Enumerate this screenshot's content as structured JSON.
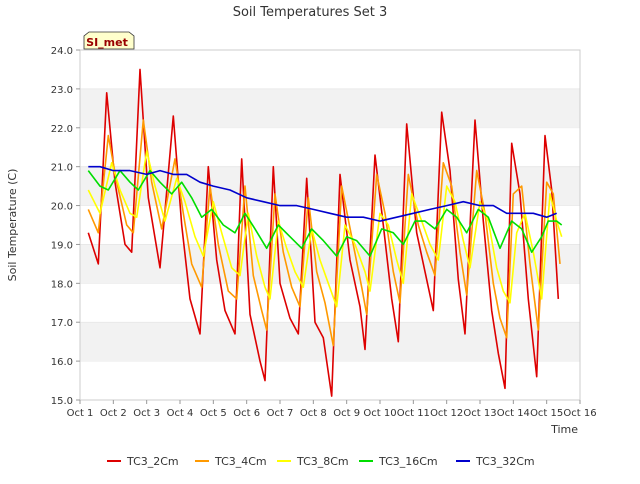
{
  "chart_data": {
    "type": "line",
    "title": "Soil Temperatures Set 3",
    "xlabel": "Time",
    "ylabel": "Soil Temperature (C)",
    "badge": "SI_met",
    "ylim": [
      15.0,
      24.0
    ],
    "xlim": [
      1,
      16
    ],
    "x_ticks": [
      {
        "v": 1,
        "label": "Oct 1"
      },
      {
        "v": 2,
        "label": "Oct 2"
      },
      {
        "v": 3,
        "label": "Oct 3"
      },
      {
        "v": 4,
        "label": "Oct 4"
      },
      {
        "v": 5,
        "label": "Oct 5"
      },
      {
        "v": 6,
        "label": "Oct 6"
      },
      {
        "v": 7,
        "label": "Oct 7"
      },
      {
        "v": 8,
        "label": "Oct 8"
      },
      {
        "v": 9,
        "label": "Oct 9"
      },
      {
        "v": 10,
        "label": "Oct 10"
      },
      {
        "v": 11,
        "label": "Oct 11"
      },
      {
        "v": 12,
        "label": "Oct 12"
      },
      {
        "v": 13,
        "label": "Oct 13"
      },
      {
        "v": 14,
        "label": "Oct 14"
      },
      {
        "v": 15,
        "label": "Oct 15"
      },
      {
        "v": 16,
        "label": "Oct 16"
      }
    ],
    "y_ticks": [
      "15.0",
      "16.0",
      "17.0",
      "18.0",
      "19.0",
      "20.0",
      "21.0",
      "22.0",
      "23.0",
      "24.0"
    ],
    "grid": "horizontal alternating bands",
    "legend_position": "bottom",
    "series": [
      {
        "name": "TC3_2Cm",
        "color": "#dd0000",
        "points": [
          [
            1.25,
            19.3
          ],
          [
            1.55,
            18.5
          ],
          [
            1.8,
            22.9
          ],
          [
            2.05,
            20.6
          ],
          [
            2.35,
            19.0
          ],
          [
            2.55,
            18.8
          ],
          [
            2.8,
            23.5
          ],
          [
            3.05,
            20.2
          ],
          [
            3.4,
            18.4
          ],
          [
            3.8,
            22.3
          ],
          [
            4.05,
            19.5
          ],
          [
            4.3,
            17.6
          ],
          [
            4.6,
            16.7
          ],
          [
            4.85,
            21.0
          ],
          [
            5.1,
            18.6
          ],
          [
            5.35,
            17.3
          ],
          [
            5.65,
            16.7
          ],
          [
            5.85,
            21.2
          ],
          [
            6.1,
            17.2
          ],
          [
            6.4,
            16.0
          ],
          [
            6.55,
            15.5
          ],
          [
            6.8,
            21.0
          ],
          [
            7.0,
            18.0
          ],
          [
            7.3,
            17.1
          ],
          [
            7.55,
            16.7
          ],
          [
            7.8,
            20.7
          ],
          [
            8.05,
            17.0
          ],
          [
            8.3,
            16.6
          ],
          [
            8.55,
            15.1
          ],
          [
            8.8,
            20.8
          ],
          [
            9.1,
            18.6
          ],
          [
            9.4,
            17.4
          ],
          [
            9.55,
            16.3
          ],
          [
            9.85,
            21.3
          ],
          [
            10.1,
            19.5
          ],
          [
            10.35,
            17.6
          ],
          [
            10.55,
            16.5
          ],
          [
            10.8,
            22.1
          ],
          [
            11.1,
            19.3
          ],
          [
            11.35,
            18.3
          ],
          [
            11.6,
            17.3
          ],
          [
            11.85,
            22.4
          ],
          [
            12.1,
            20.9
          ],
          [
            12.35,
            18.1
          ],
          [
            12.55,
            16.7
          ],
          [
            12.85,
            22.2
          ],
          [
            13.1,
            19.6
          ],
          [
            13.35,
            17.3
          ],
          [
            13.55,
            16.2
          ],
          [
            13.75,
            15.3
          ],
          [
            13.95,
            21.6
          ],
          [
            14.2,
            20.3
          ],
          [
            14.45,
            17.6
          ],
          [
            14.7,
            15.6
          ],
          [
            14.95,
            21.8
          ],
          [
            15.15,
            20.4
          ],
          [
            15.35,
            17.6
          ]
        ]
      },
      {
        "name": "TC3_4Cm",
        "color": "#ff9900",
        "points": [
          [
            1.25,
            19.9
          ],
          [
            1.55,
            19.3
          ],
          [
            1.85,
            21.8
          ],
          [
            2.1,
            20.6
          ],
          [
            2.4,
            19.5
          ],
          [
            2.6,
            19.3
          ],
          [
            2.9,
            22.2
          ],
          [
            3.15,
            20.6
          ],
          [
            3.45,
            19.4
          ],
          [
            3.85,
            21.2
          ],
          [
            4.1,
            19.8
          ],
          [
            4.35,
            18.5
          ],
          [
            4.65,
            17.9
          ],
          [
            4.9,
            20.5
          ],
          [
            5.15,
            19.0
          ],
          [
            5.45,
            17.8
          ],
          [
            5.7,
            17.6
          ],
          [
            5.95,
            20.5
          ],
          [
            6.2,
            18.2
          ],
          [
            6.45,
            17.3
          ],
          [
            6.6,
            16.8
          ],
          [
            6.85,
            20.3
          ],
          [
            7.1,
            18.8
          ],
          [
            7.35,
            17.9
          ],
          [
            7.6,
            17.4
          ],
          [
            7.85,
            20.2
          ],
          [
            8.1,
            18.3
          ],
          [
            8.35,
            17.5
          ],
          [
            8.6,
            16.4
          ],
          [
            8.85,
            20.5
          ],
          [
            9.15,
            19.2
          ],
          [
            9.45,
            17.9
          ],
          [
            9.6,
            17.2
          ],
          [
            9.9,
            20.8
          ],
          [
            10.15,
            19.8
          ],
          [
            10.4,
            18.3
          ],
          [
            10.6,
            17.5
          ],
          [
            10.85,
            20.8
          ],
          [
            11.15,
            19.5
          ],
          [
            11.4,
            18.8
          ],
          [
            11.65,
            18.2
          ],
          [
            11.9,
            21.1
          ],
          [
            12.15,
            20.5
          ],
          [
            12.4,
            18.8
          ],
          [
            12.6,
            17.7
          ],
          [
            12.9,
            20.9
          ],
          [
            13.15,
            19.8
          ],
          [
            13.4,
            18.0
          ],
          [
            13.6,
            17.1
          ],
          [
            13.8,
            16.6
          ],
          [
            14.0,
            20.3
          ],
          [
            14.25,
            20.5
          ],
          [
            14.5,
            18.5
          ],
          [
            14.75,
            16.8
          ],
          [
            15.0,
            20.6
          ],
          [
            15.2,
            20.3
          ],
          [
            15.4,
            18.5
          ]
        ]
      },
      {
        "name": "TC3_8Cm",
        "color": "#ffff00",
        "points": [
          [
            1.25,
            20.4
          ],
          [
            1.6,
            19.8
          ],
          [
            1.95,
            21.1
          ],
          [
            2.2,
            20.4
          ],
          [
            2.5,
            19.8
          ],
          [
            2.7,
            19.7
          ],
          [
            3.0,
            21.4
          ],
          [
            3.25,
            20.5
          ],
          [
            3.55,
            19.6
          ],
          [
            3.9,
            20.7
          ],
          [
            4.15,
            20.1
          ],
          [
            4.45,
            19.2
          ],
          [
            4.7,
            18.7
          ],
          [
            5.0,
            20.1
          ],
          [
            5.25,
            19.3
          ],
          [
            5.55,
            18.4
          ],
          [
            5.8,
            18.2
          ],
          [
            6.05,
            19.8
          ],
          [
            6.3,
            18.7
          ],
          [
            6.55,
            17.9
          ],
          [
            6.7,
            17.6
          ],
          [
            6.95,
            19.6
          ],
          [
            7.2,
            18.9
          ],
          [
            7.45,
            18.3
          ],
          [
            7.7,
            17.9
          ],
          [
            7.95,
            19.4
          ],
          [
            8.2,
            18.6
          ],
          [
            8.45,
            18.0
          ],
          [
            8.7,
            17.4
          ],
          [
            8.95,
            19.5
          ],
          [
            9.25,
            19.0
          ],
          [
            9.55,
            18.3
          ],
          [
            9.7,
            17.8
          ],
          [
            10.0,
            19.8
          ],
          [
            10.25,
            19.5
          ],
          [
            10.5,
            18.6
          ],
          [
            10.7,
            18.0
          ],
          [
            10.95,
            20.3
          ],
          [
            11.25,
            19.6
          ],
          [
            11.5,
            19.0
          ],
          [
            11.75,
            18.6
          ],
          [
            12.0,
            20.5
          ],
          [
            12.25,
            20.1
          ],
          [
            12.5,
            19.1
          ],
          [
            12.7,
            18.4
          ],
          [
            13.0,
            20.1
          ],
          [
            13.25,
            19.6
          ],
          [
            13.5,
            18.4
          ],
          [
            13.7,
            17.8
          ],
          [
            13.9,
            17.5
          ],
          [
            14.1,
            19.3
          ],
          [
            14.35,
            19.8
          ],
          [
            14.6,
            18.8
          ],
          [
            14.85,
            17.6
          ],
          [
            15.1,
            20.3
          ],
          [
            15.3,
            19.6
          ],
          [
            15.45,
            19.2
          ]
        ]
      },
      {
        "name": "TC3_16Cm",
        "color": "#00dd00",
        "points": [
          [
            1.25,
            20.9
          ],
          [
            1.6,
            20.5
          ],
          [
            1.85,
            20.4
          ],
          [
            2.2,
            20.9
          ],
          [
            2.5,
            20.6
          ],
          [
            2.75,
            20.4
          ],
          [
            3.1,
            20.9
          ],
          [
            3.4,
            20.6
          ],
          [
            3.75,
            20.3
          ],
          [
            4.05,
            20.6
          ],
          [
            4.35,
            20.2
          ],
          [
            4.65,
            19.7
          ],
          [
            4.95,
            19.9
          ],
          [
            5.3,
            19.5
          ],
          [
            5.65,
            19.3
          ],
          [
            5.95,
            19.8
          ],
          [
            6.25,
            19.4
          ],
          [
            6.6,
            18.9
          ],
          [
            6.95,
            19.5
          ],
          [
            7.3,
            19.2
          ],
          [
            7.65,
            18.9
          ],
          [
            7.95,
            19.4
          ],
          [
            8.3,
            19.1
          ],
          [
            8.7,
            18.7
          ],
          [
            9.0,
            19.2
          ],
          [
            9.3,
            19.1
          ],
          [
            9.7,
            18.7
          ],
          [
            10.05,
            19.4
          ],
          [
            10.4,
            19.3
          ],
          [
            10.7,
            19.0
          ],
          [
            11.05,
            19.6
          ],
          [
            11.35,
            19.6
          ],
          [
            11.65,
            19.4
          ],
          [
            12.0,
            19.9
          ],
          [
            12.3,
            19.7
          ],
          [
            12.6,
            19.3
          ],
          [
            12.95,
            19.9
          ],
          [
            13.25,
            19.7
          ],
          [
            13.6,
            18.9
          ],
          [
            13.95,
            19.6
          ],
          [
            14.25,
            19.4
          ],
          [
            14.55,
            18.8
          ],
          [
            14.85,
            19.2
          ],
          [
            15.05,
            19.6
          ],
          [
            15.3,
            19.6
          ],
          [
            15.45,
            19.5
          ]
        ]
      },
      {
        "name": "TC3_32Cm",
        "color": "#0000cc",
        "points": [
          [
            1.25,
            21.0
          ],
          [
            1.6,
            21.0
          ],
          [
            2.0,
            20.9
          ],
          [
            2.5,
            20.9
          ],
          [
            3.0,
            20.8
          ],
          [
            3.4,
            20.9
          ],
          [
            3.8,
            20.8
          ],
          [
            4.2,
            20.8
          ],
          [
            4.6,
            20.6
          ],
          [
            5.0,
            20.5
          ],
          [
            5.5,
            20.4
          ],
          [
            6.0,
            20.2
          ],
          [
            6.5,
            20.1
          ],
          [
            7.0,
            20.0
          ],
          [
            7.5,
            20.0
          ],
          [
            8.0,
            19.9
          ],
          [
            8.5,
            19.8
          ],
          [
            9.0,
            19.7
          ],
          [
            9.5,
            19.7
          ],
          [
            10.0,
            19.6
          ],
          [
            10.5,
            19.7
          ],
          [
            11.0,
            19.8
          ],
          [
            11.5,
            19.9
          ],
          [
            12.0,
            20.0
          ],
          [
            12.5,
            20.1
          ],
          [
            13.0,
            20.0
          ],
          [
            13.4,
            20.0
          ],
          [
            13.8,
            19.8
          ],
          [
            14.2,
            19.8
          ],
          [
            14.6,
            19.8
          ],
          [
            15.0,
            19.7
          ],
          [
            15.3,
            19.8
          ]
        ]
      }
    ]
  }
}
